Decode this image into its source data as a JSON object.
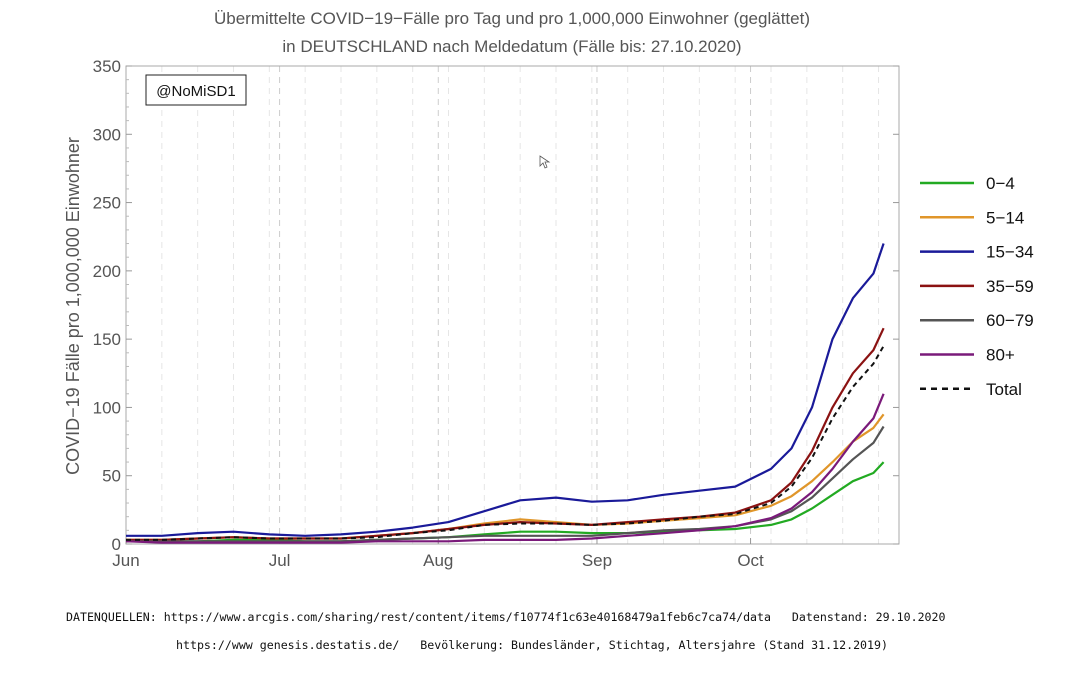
{
  "chart_data": {
    "type": "line",
    "title": "Übermittelte COVID−19−Fälle pro Tag und pro 1,000,000 Einwohner (geglättet)",
    "subtitle": "in DEUTSCHLAND nach Meldedatum (Fälle bis: 27.10.2020)",
    "xlabel": "",
    "ylabel": "COVID−19 Fälle pro 1,000,000 Einwohner",
    "ylim": [
      0,
      350
    ],
    "yticks": [
      0,
      50,
      100,
      150,
      200,
      250,
      300,
      350
    ],
    "xlim": [
      "2020-06-01",
      "2020-10-30"
    ],
    "xticks": [
      {
        "label": "Jun",
        "date": "2020-06-01"
      },
      {
        "label": "Jul",
        "date": "2020-07-01"
      },
      {
        "label": "Aug",
        "date": "2020-08-01"
      },
      {
        "label": "Sep",
        "date": "2020-09-01"
      },
      {
        "label": "Oct",
        "date": "2020-10-01"
      }
    ],
    "grid": "vertical dashed",
    "legend_position": "right",
    "annotation": "@NoMiSD1",
    "x": [
      "2020-06-01",
      "2020-06-08",
      "2020-06-15",
      "2020-06-22",
      "2020-06-29",
      "2020-07-06",
      "2020-07-13",
      "2020-07-20",
      "2020-07-27",
      "2020-08-03",
      "2020-08-10",
      "2020-08-17",
      "2020-08-24",
      "2020-08-31",
      "2020-09-07",
      "2020-09-14",
      "2020-09-21",
      "2020-09-28",
      "2020-10-05",
      "2020-10-09",
      "2020-10-13",
      "2020-10-17",
      "2020-10-21",
      "2020-10-25",
      "2020-10-27"
    ],
    "series": [
      {
        "name": "0−4",
        "color": "#22aa22",
        "dashed": false,
        "values": [
          2,
          2,
          2,
          3,
          3,
          2,
          2,
          3,
          4,
          5,
          7,
          9,
          9,
          8,
          8,
          9,
          10,
          11,
          14,
          18,
          26,
          36,
          46,
          52,
          60
        ]
      },
      {
        "name": "5−14",
        "color": "#e0962a",
        "dashed": false,
        "values": [
          3,
          3,
          4,
          5,
          4,
          4,
          4,
          6,
          8,
          11,
          15,
          18,
          16,
          14,
          15,
          17,
          19,
          21,
          28,
          35,
          46,
          60,
          75,
          85,
          95
        ]
      },
      {
        "name": "15−34",
        "color": "#1a1a99",
        "dashed": false,
        "values": [
          6,
          6,
          8,
          9,
          7,
          6,
          7,
          9,
          12,
          16,
          24,
          32,
          34,
          31,
          32,
          36,
          39,
          42,
          55,
          70,
          100,
          150,
          180,
          198,
          220
        ]
      },
      {
        "name": "35−59",
        "color": "#8b1212",
        "dashed": false,
        "values": [
          3,
          3,
          4,
          5,
          4,
          4,
          4,
          6,
          8,
          11,
          14,
          16,
          15,
          14,
          16,
          18,
          20,
          23,
          32,
          45,
          68,
          100,
          125,
          142,
          158
        ]
      },
      {
        "name": "60−79",
        "color": "#555555",
        "dashed": false,
        "values": [
          2,
          2,
          2,
          2,
          2,
          2,
          2,
          3,
          4,
          5,
          6,
          6,
          6,
          6,
          8,
          10,
          11,
          13,
          18,
          24,
          34,
          48,
          62,
          74,
          86
        ]
      },
      {
        "name": "80+",
        "color": "#7a1a7a",
        "dashed": false,
        "values": [
          2,
          1,
          1,
          1,
          1,
          1,
          1,
          2,
          2,
          2,
          3,
          3,
          3,
          4,
          6,
          8,
          10,
          13,
          19,
          26,
          38,
          55,
          75,
          92,
          110
        ]
      },
      {
        "name": "Total",
        "color": "#111111",
        "dashed": true,
        "values": [
          3,
          3,
          4,
          5,
          4,
          4,
          4,
          5,
          8,
          10,
          14,
          15,
          15,
          14,
          15,
          17,
          20,
          22,
          30,
          42,
          63,
          92,
          115,
          132,
          145
        ]
      }
    ]
  },
  "footer": {
    "line1": "DATENQUELLEN: https://www.arcgis.com/sharing/rest/content/items/f10774f1c63e40168479a1feb6c7ca74/data   Datenstand: 29.10.2020",
    "line2": "https://www genesis.destatis.de/   Bevölkerung: Bundesländer, Stichtag, Altersjahre (Stand 31.12.2019)"
  }
}
